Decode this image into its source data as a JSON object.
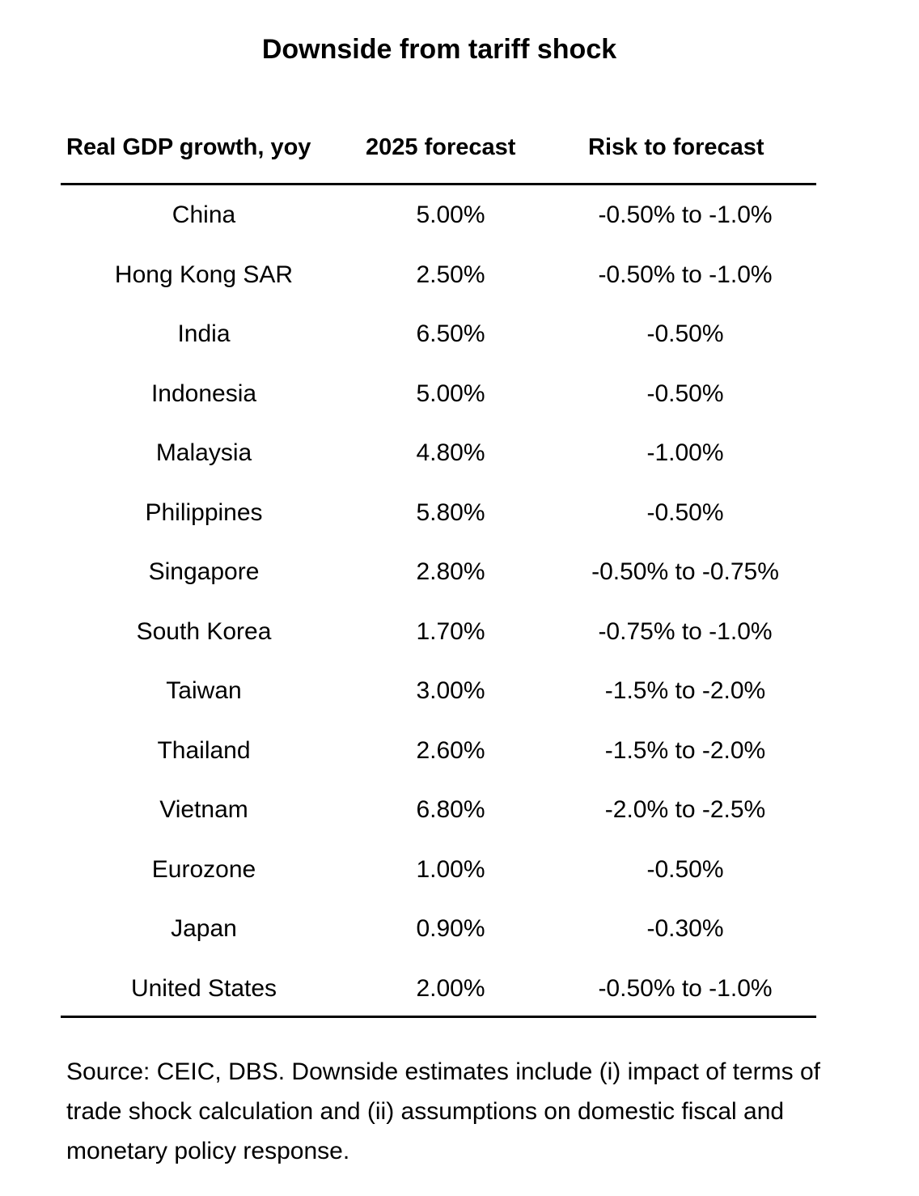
{
  "title": "Downside from tariff shock",
  "headers": [
    "Real GDP growth, yoy",
    "2025 forecast",
    "Risk to forecast"
  ],
  "rows": [
    [
      "China",
      "5.00%",
      "-0.50% to -1.0%"
    ],
    [
      "Hong Kong SAR",
      "2.50%",
      "-0.50% to -1.0%"
    ],
    [
      "India",
      "6.50%",
      "-0.50%"
    ],
    [
      "Indonesia",
      "5.00%",
      "-0.50%"
    ],
    [
      "Malaysia",
      "4.80%",
      "-1.00%"
    ],
    [
      "Philippines",
      "5.80%",
      "-0.50%"
    ],
    [
      "Singapore",
      "2.80%",
      "-0.50% to -0.75%"
    ],
    [
      "South Korea",
      "1.70%",
      "-0.75% to -1.0%"
    ],
    [
      "Taiwan",
      "3.00%",
      "-1.5% to -2.0%"
    ],
    [
      "Thailand",
      "2.60%",
      "-1.5% to -2.0%"
    ],
    [
      "Vietnam",
      "6.80%",
      "-2.0% to -2.5%"
    ],
    [
      "Eurozone",
      "1.00%",
      "-0.50%"
    ],
    [
      "Japan",
      "0.90%",
      "-0.30%"
    ],
    [
      "United States",
      "2.00%",
      "-0.50% to -1.0%"
    ]
  ],
  "footnote": "Source: CEIC, DBS. Downside estimates include (i) impact of terms of trade shock calculation and (ii) assumptions on domestic fiscal and monetary policy response."
}
